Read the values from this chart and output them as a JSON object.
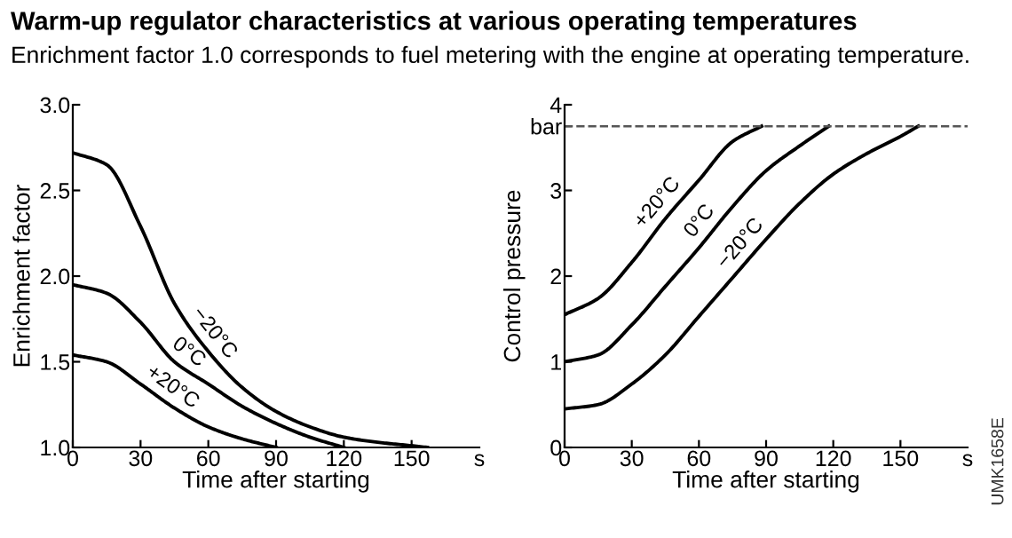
{
  "chart_data": [
    {
      "type": "line",
      "title": "Warm-up regulator characteristics at various operating temperatures",
      "subtitle": "Enrichment factor 1.0 corresponds to fuel metering with the engine at operating temperature.",
      "xlabel": "Time after starting",
      "ylabel": "Enrichment factor",
      "xlim": [
        0,
        180
      ],
      "xticks": [
        0,
        30,
        60,
        90,
        120,
        150,
        {
          "value": 180,
          "label": "s"
        }
      ],
      "ylim": [
        1,
        3
      ],
      "yticks": [
        {
          "value": 1.0,
          "label": "1.0"
        },
        1.5,
        {
          "value": 2.0,
          "label": "2.0"
        },
        2.5,
        {
          "value": 3.0,
          "label": "3.0"
        }
      ],
      "grid": false,
      "legend": false,
      "marker": "none",
      "line_style": "solid",
      "series": [
        {
          "name": "−20°C",
          "color": "#000000",
          "x": [
            0,
            15,
            30,
            45,
            60,
            75,
            90,
            105,
            120,
            135,
            150,
            157
          ],
          "values": [
            2.72,
            2.65,
            2.29,
            1.84,
            1.56,
            1.35,
            1.21,
            1.12,
            1.06,
            1.03,
            1.01,
            1.0
          ]
        },
        {
          "name": "0°C",
          "color": "#000000",
          "x": [
            0,
            15,
            30,
            45,
            60,
            75,
            90,
            105,
            120
          ],
          "values": [
            1.95,
            1.9,
            1.73,
            1.5,
            1.37,
            1.24,
            1.14,
            1.06,
            1.0
          ]
        },
        {
          "name": "+20°C",
          "color": "#000000",
          "x": [
            0,
            15,
            30,
            45,
            60,
            75,
            90
          ],
          "values": [
            1.54,
            1.5,
            1.37,
            1.23,
            1.12,
            1.05,
            1.0
          ]
        }
      ]
    },
    {
      "type": "line",
      "xlabel": "Time after starting",
      "ylabel": "Control pressure",
      "xlim": [
        0,
        180
      ],
      "xticks": [
        0,
        30,
        60,
        90,
        120,
        150,
        {
          "value": 180,
          "label": "s"
        }
      ],
      "ylim": [
        0,
        4
      ],
      "yticks": [
        0,
        1,
        2,
        3,
        {
          "value": 3.75,
          "label": "bar"
        },
        4
      ],
      "grid": false,
      "legend": false,
      "marker": "none",
      "line_style": "solid",
      "ref_lines": [
        {
          "axis": "y",
          "value": 3.75,
          "color": "#555555",
          "line_style": "dashed"
        }
      ],
      "series": [
        {
          "name": "+20°C",
          "color": "#000000",
          "x": [
            0,
            15,
            30,
            45,
            60,
            75,
            88
          ],
          "values": [
            1.55,
            1.74,
            2.16,
            2.67,
            3.12,
            3.57,
            3.75
          ]
        },
        {
          "name": "0°C",
          "color": "#000000",
          "x": [
            0,
            15,
            30,
            45,
            60,
            75,
            90,
            105,
            118
          ],
          "values": [
            1.0,
            1.08,
            1.43,
            1.88,
            2.33,
            2.81,
            3.23,
            3.52,
            3.75
          ]
        },
        {
          "name": "−20°C",
          "color": "#000000",
          "x": [
            0,
            15,
            30,
            45,
            60,
            75,
            90,
            105,
            120,
            135,
            150,
            158
          ],
          "values": [
            0.45,
            0.5,
            0.74,
            1.08,
            1.53,
            1.98,
            2.43,
            2.85,
            3.19,
            3.43,
            3.63,
            3.75
          ]
        }
      ],
      "annotations": [
        "UMK1658E"
      ]
    }
  ]
}
